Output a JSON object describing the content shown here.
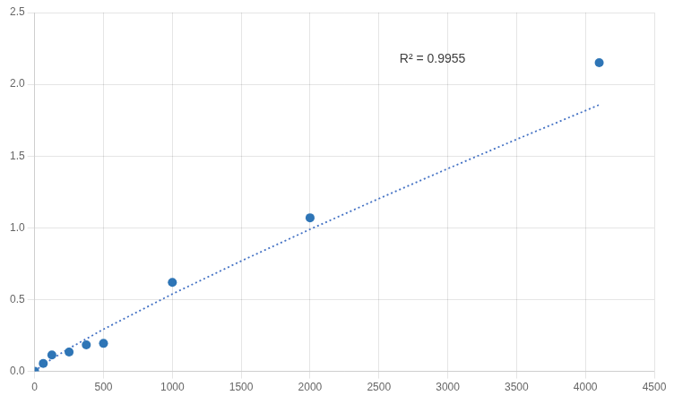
{
  "chart_data": {
    "type": "scatter",
    "series": [
      {
        "type": "scatter",
        "marker": "circle",
        "color": "#2E75B6",
        "x": [
          0,
          62.5,
          125,
          250,
          375,
          500,
          1000,
          2000,
          4100
        ],
        "values": [
          0.0,
          0.055,
          0.115,
          0.135,
          0.185,
          0.195,
          0.62,
          1.07,
          2.15
        ]
      },
      {
        "type": "line",
        "line_style": "dotted",
        "color": "#4472C4",
        "x": [
          0,
          1,
          50,
          100,
          250,
          500,
          1000,
          1500,
          2000,
          2500,
          3000,
          3500,
          4100
        ],
        "values": [
          0,
          0.001266,
          0.03903,
          0.07166,
          0.16,
          0.2937,
          0.5391,
          0.7692,
          0.9898,
          1.2036,
          1.4122,
          1.6165,
          1.8569
        ]
      }
    ],
    "annotations": [
      {
        "text": "R² = 0.9955",
        "x": 2650,
        "y": 2.22
      }
    ],
    "xlim": [
      0,
      4500
    ],
    "ylim": [
      0,
      2.5
    ],
    "xticks": [
      0,
      500,
      1000,
      1500,
      2000,
      2500,
      3000,
      3500,
      4000,
      4500
    ],
    "yticks": [
      {
        "value": 0,
        "label": "0.0"
      },
      0.5,
      {
        "value": 1,
        "label": "1.0"
      },
      1.5,
      {
        "value": 2,
        "label": "2.0"
      },
      2.5
    ],
    "grid": true
  }
}
